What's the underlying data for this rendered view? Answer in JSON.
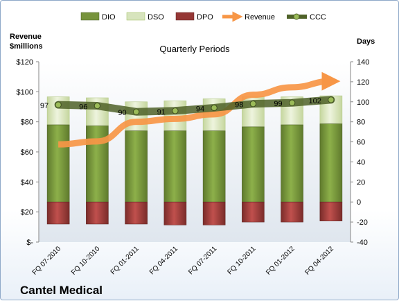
{
  "chart_data": {
    "type": "bar",
    "title": "Quarterly Periods",
    "company": "Cantel Medical",
    "left_axis_label": [
      "Revenue",
      "$millions"
    ],
    "right_axis_label": "Days",
    "categories": [
      "FQ 07-2010",
      "FQ 10-2010",
      "FQ 01-2011",
      "FQ 04-2011",
      "FQ 07-2011",
      "FQ 10-2011",
      "FQ 01-2012",
      "FQ 04-2012"
    ],
    "left_axis": {
      "min": 0,
      "max": 120,
      "step": 20,
      "tick_labels": [
        "$-",
        "$20",
        "$40",
        "$60",
        "$80",
        "$100",
        "$120"
      ]
    },
    "right_axis": {
      "min": -40,
      "max": 140,
      "step": 20
    },
    "series": [
      {
        "name": "DIO",
        "axis": "right",
        "color": "#77933c",
        "values": [
          77,
          76,
          71,
          71,
          71,
          75,
          77,
          78
        ]
      },
      {
        "name": "DSO",
        "axis": "right",
        "color": "#d7e4bd",
        "values": [
          28,
          28,
          29,
          30,
          32,
          30,
          28,
          28
        ]
      },
      {
        "name": "DPO",
        "axis": "right",
        "color": "#953735",
        "values": [
          -22,
          -22,
          -22,
          -23,
          -23,
          -20,
          -20,
          -19
        ]
      },
      {
        "name": "Revenue",
        "axis": "left",
        "color": "#f79646",
        "values": [
          65,
          67,
          80,
          82,
          85,
          98,
          103,
          107
        ]
      },
      {
        "name": "CCC",
        "axis": "right",
        "color": "#4f6228",
        "values": [
          97,
          96,
          90,
          91,
          94,
          98,
          99,
          102
        ]
      }
    ],
    "ccc_labels": [
      "97",
      "96",
      "90",
      "91",
      "94",
      "98",
      "99",
      "102"
    ],
    "grid": false,
    "legend_position": "top"
  }
}
